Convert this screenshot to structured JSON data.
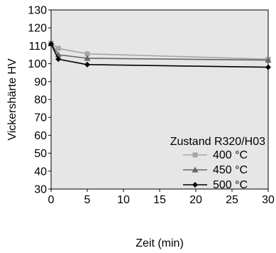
{
  "chart_data": {
    "type": "line",
    "title": "",
    "xlabel": "Zeit (min)",
    "ylabel": "Vickershärte HV",
    "xlim": [
      0,
      30
    ],
    "ylim": [
      30,
      130
    ],
    "x_ticks": [
      0,
      5,
      10,
      15,
      20,
      25,
      30
    ],
    "y_ticks": [
      30,
      40,
      50,
      60,
      70,
      80,
      90,
      100,
      110,
      120,
      130
    ],
    "grid": false,
    "plot_background": "#e6e6e6",
    "legend": {
      "title": "Zustand R320/H03",
      "placement": "bottom-right"
    },
    "series": [
      {
        "name": "400 °C",
        "color": "#a6a6a6",
        "marker": "square",
        "points": [
          [
            0,
            111.5
          ],
          [
            1,
            108.5
          ],
          [
            5,
            105.5
          ],
          [
            30,
            102.5
          ]
        ]
      },
      {
        "name": "450 °C",
        "color": "#666666",
        "marker": "triangle",
        "points": [
          [
            0,
            111.5
          ],
          [
            1,
            105
          ],
          [
            5,
            103
          ],
          [
            30,
            102
          ]
        ]
      },
      {
        "name": "500 °C",
        "color": "#000000",
        "marker": "diamond",
        "points": [
          [
            0,
            111
          ],
          [
            1,
            102.5
          ],
          [
            5,
            99.5
          ],
          [
            30,
            98
          ]
        ]
      }
    ]
  }
}
